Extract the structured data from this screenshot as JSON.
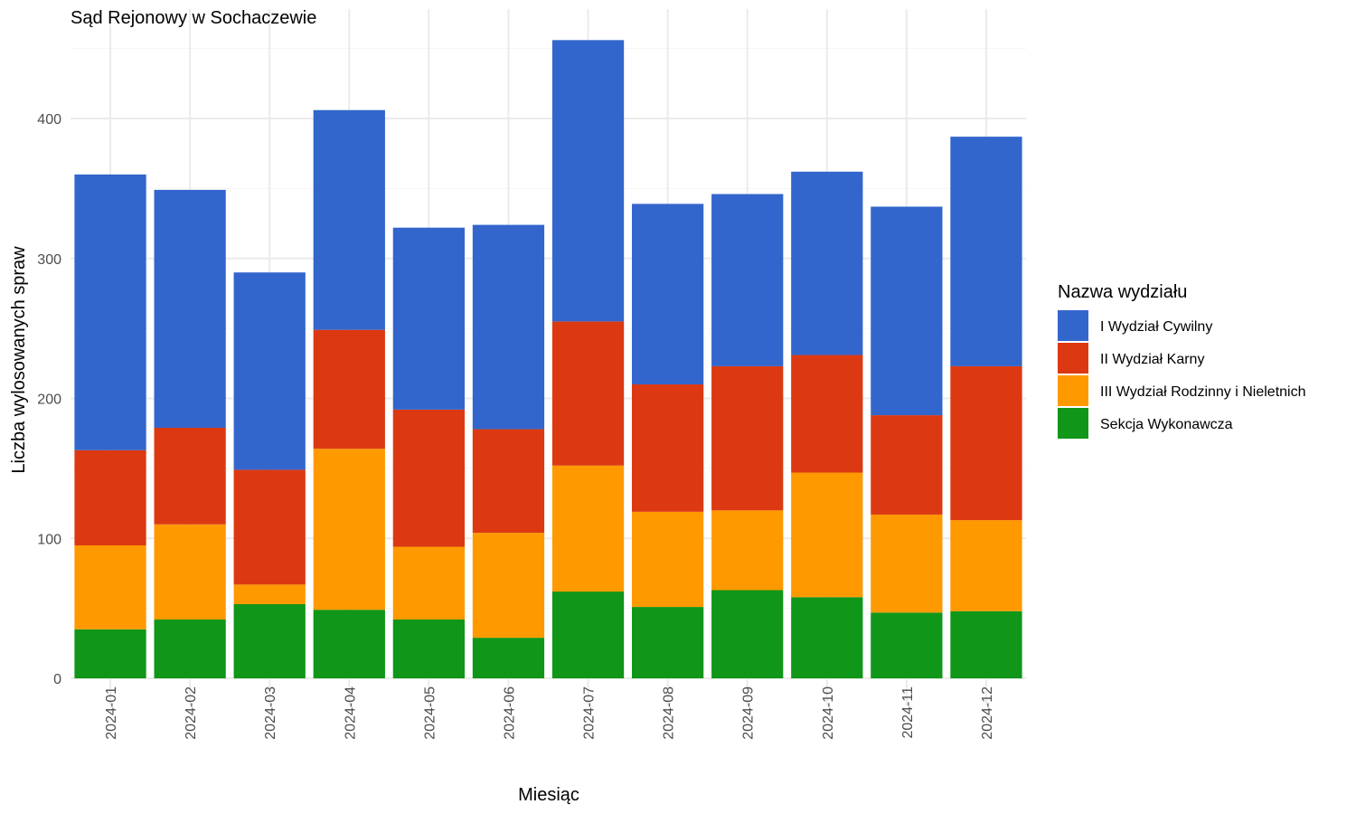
{
  "chart_data": {
    "type": "bar",
    "stacked": true,
    "title": "Sąd Rejonowy w Sochaczewie",
    "xlabel": "Miesiąc",
    "ylabel": "Liczba wylosowanych spraw",
    "ylim": [
      0,
      460
    ],
    "yticks": [
      0,
      100,
      200,
      300,
      400
    ],
    "grid": true,
    "legend": {
      "title": "Nazwa wydziału",
      "position": "right"
    },
    "categories": [
      "2024-01",
      "2024-02",
      "2024-03",
      "2024-04",
      "2024-05",
      "2024-06",
      "2024-07",
      "2024-08",
      "2024-09",
      "2024-10",
      "2024-11",
      "2024-12"
    ],
    "series": [
      {
        "name": "Sekcja Wykonawcza",
        "color": "#109618",
        "values": [
          35,
          42,
          53,
          49,
          42,
          29,
          62,
          51,
          63,
          58,
          47,
          48
        ]
      },
      {
        "name": "III Wydział Rodzinny i Nieletnich",
        "color": "#FF9900",
        "values": [
          60,
          68,
          14,
          115,
          52,
          75,
          90,
          68,
          57,
          89,
          70,
          65
        ]
      },
      {
        "name": "II Wydział Karny",
        "color": "#DC3912",
        "values": [
          68,
          69,
          82,
          85,
          98,
          74,
          103,
          91,
          103,
          84,
          71,
          110
        ]
      },
      {
        "name": "I Wydział Cywilny",
        "color": "#3366CC",
        "values": [
          197,
          170,
          141,
          157,
          130,
          146,
          201,
          129,
          123,
          131,
          149,
          164
        ]
      }
    ],
    "legend_order": [
      "I Wydział Cywilny",
      "II Wydział Karny",
      "III Wydział Rodzinny i Nieletnich",
      "Sekcja Wykonawcza"
    ]
  }
}
